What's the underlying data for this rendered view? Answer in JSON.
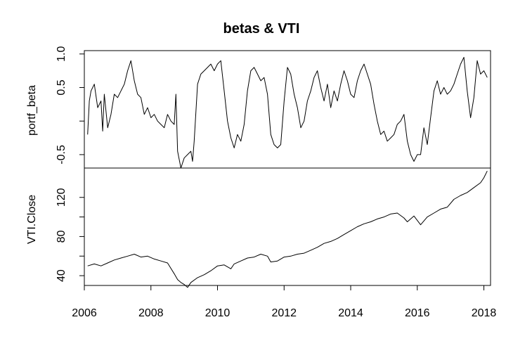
{
  "chart_data": {
    "type": "line",
    "title": "betas & VTI",
    "grid": false,
    "x_axis": {
      "range": [
        2006,
        2018.2
      ],
      "ticks": [
        2006,
        2008,
        2010,
        2012,
        2014,
        2016,
        2018
      ],
      "tick_labels": [
        "2006",
        "2008",
        "2010",
        "2012",
        "2014",
        "2016",
        "2018"
      ]
    },
    "panels": [
      {
        "ylabel": "portf_beta",
        "ylim": [
          -0.7,
          1.05
        ],
        "yticks": [
          -0.5,
          0.0,
          0.5,
          1.0
        ],
        "ytick_labels": [
          "-0.5",
          "",
          "0.5",
          "1.0"
        ],
        "series": [
          {
            "color": "#000000",
            "x": [
              2006.1,
              2006.15,
              2006.2,
              2006.3,
              2006.4,
              2006.5,
              2006.55,
              2006.6,
              2006.7,
              2006.8,
              2006.9,
              2007.0,
              2007.1,
              2007.2,
              2007.3,
              2007.4,
              2007.5,
              2007.6,
              2007.7,
              2007.8,
              2007.9,
              2008.0,
              2008.1,
              2008.2,
              2008.3,
              2008.4,
              2008.5,
              2008.6,
              2008.7,
              2008.75,
              2008.8,
              2008.9,
              2009.0,
              2009.1,
              2009.2,
              2009.25,
              2009.3,
              2009.4,
              2009.5,
              2009.6,
              2009.7,
              2009.8,
              2009.9,
              2010.0,
              2010.1,
              2010.2,
              2010.3,
              2010.4,
              2010.5,
              2010.6,
              2010.7,
              2010.8,
              2010.9,
              2011.0,
              2011.1,
              2011.2,
              2011.3,
              2011.4,
              2011.5,
              2011.6,
              2011.7,
              2011.8,
              2011.9,
              2012.0,
              2012.1,
              2012.2,
              2012.3,
              2012.4,
              2012.5,
              2012.6,
              2012.7,
              2012.8,
              2012.9,
              2013.0,
              2013.1,
              2013.2,
              2013.3,
              2013.4,
              2013.5,
              2013.6,
              2013.7,
              2013.8,
              2013.9,
              2014.0,
              2014.1,
              2014.2,
              2014.3,
              2014.4,
              2014.5,
              2014.6,
              2014.7,
              2014.8,
              2014.9,
              2015.0,
              2015.1,
              2015.2,
              2015.3,
              2015.4,
              2015.5,
              2015.6,
              2015.7,
              2015.8,
              2015.9,
              2016.0,
              2016.1,
              2016.2,
              2016.3,
              2016.4,
              2016.5,
              2016.6,
              2016.7,
              2016.8,
              2016.9,
              2017.0,
              2017.1,
              2017.2,
              2017.3,
              2017.4,
              2017.5,
              2017.6,
              2017.7,
              2017.8,
              2017.9,
              2018.0,
              2018.1
            ],
            "values": [
              -0.2,
              0.3,
              0.45,
              0.55,
              0.2,
              0.3,
              -0.15,
              0.4,
              -0.1,
              0.1,
              0.4,
              0.35,
              0.45,
              0.55,
              0.75,
              0.9,
              0.6,
              0.4,
              0.35,
              0.1,
              0.2,
              0.05,
              0.1,
              0.0,
              -0.05,
              -0.1,
              0.1,
              0.0,
              -0.05,
              0.4,
              -0.45,
              -0.7,
              -0.55,
              -0.5,
              -0.45,
              -0.6,
              -0.3,
              0.55,
              0.7,
              0.75,
              0.8,
              0.85,
              0.75,
              0.85,
              0.9,
              0.45,
              0.0,
              -0.25,
              -0.4,
              -0.2,
              -0.3,
              -0.05,
              0.45,
              0.75,
              0.8,
              0.7,
              0.6,
              0.65,
              0.4,
              -0.2,
              -0.35,
              -0.4,
              -0.35,
              0.3,
              0.8,
              0.7,
              0.4,
              0.2,
              -0.1,
              0.0,
              0.3,
              0.45,
              0.65,
              0.75,
              0.5,
              0.3,
              0.55,
              0.2,
              0.45,
              0.3,
              0.55,
              0.75,
              0.6,
              0.4,
              0.35,
              0.6,
              0.75,
              0.85,
              0.7,
              0.55,
              0.25,
              0.0,
              -0.2,
              -0.15,
              -0.3,
              -0.25,
              -0.2,
              -0.05,
              0.0,
              0.1,
              -0.3,
              -0.5,
              -0.6,
              -0.5,
              -0.5,
              -0.1,
              -0.35,
              0.05,
              0.45,
              0.6,
              0.4,
              0.5,
              0.4,
              0.45,
              0.55,
              0.7,
              0.85,
              0.95,
              0.45,
              0.05,
              0.35,
              0.9,
              0.7,
              0.75,
              0.65
            ]
          }
        ]
      },
      {
        "ylabel": "VTI.Close",
        "ylim": [
          30,
          150
        ],
        "yticks": [
          40,
          60,
          80,
          100,
          120
        ],
        "ytick_labels": [
          "40",
          "",
          "80",
          "",
          "120"
        ],
        "series": [
          {
            "color": "#000000",
            "x": [
              2006.1,
              2006.3,
              2006.5,
              2006.7,
              2006.9,
              2007.1,
              2007.3,
              2007.5,
              2007.7,
              2007.9,
              2008.1,
              2008.3,
              2008.5,
              2008.7,
              2008.8,
              2008.9,
              2009.0,
              2009.1,
              2009.2,
              2009.4,
              2009.6,
              2009.8,
              2010.0,
              2010.2,
              2010.4,
              2010.5,
              2010.7,
              2010.9,
              2011.1,
              2011.3,
              2011.5,
              2011.6,
              2011.8,
              2012.0,
              2012.2,
              2012.4,
              2012.6,
              2012.8,
              2013.0,
              2013.2,
              2013.4,
              2013.6,
              2013.8,
              2014.0,
              2014.2,
              2014.4,
              2014.6,
              2014.8,
              2015.0,
              2015.2,
              2015.4,
              2015.6,
              2015.7,
              2015.9,
              2016.1,
              2016.3,
              2016.5,
              2016.7,
              2016.9,
              2017.1,
              2017.3,
              2017.5,
              2017.7,
              2017.9,
              2018.0,
              2018.1
            ],
            "values": [
              50,
              52,
              50,
              53,
              56,
              58,
              60,
              62,
              59,
              60,
              57,
              55,
              53,
              42,
              36,
              33,
              31,
              28,
              33,
              38,
              41,
              45,
              50,
              51,
              47,
              52,
              55,
              58,
              59,
              62,
              60,
              54,
              55,
              59,
              60,
              62,
              63,
              66,
              69,
              73,
              75,
              78,
              82,
              86,
              90,
              93,
              95,
              98,
              100,
              103,
              104,
              99,
              95,
              101,
              92,
              100,
              104,
              108,
              110,
              118,
              122,
              125,
              130,
              135,
              140,
              147
            ]
          }
        ]
      }
    ]
  }
}
